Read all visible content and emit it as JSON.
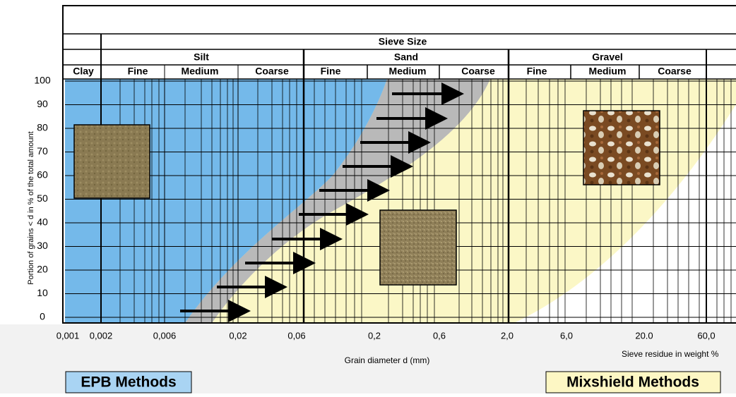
{
  "header": {
    "title": "Sieve Size",
    "groups": [
      "Silt",
      "Sand",
      "Gravel"
    ],
    "classes": [
      "Clay",
      "Fine",
      "Medium",
      "Coarse",
      "Fine",
      "Medium",
      "Coarse",
      "Fine",
      "Medium",
      "Coarse"
    ]
  },
  "y_axis": {
    "label": "Portion of grains < d in % of the total amount",
    "ticks": [
      "100",
      "90",
      "80",
      "70",
      "60",
      "50",
      "40",
      "30",
      "20",
      "10",
      "0"
    ]
  },
  "x_axis": {
    "label": "Grain diameter d (mm)",
    "ticks": [
      "0,001",
      "0,002",
      "0,006",
      "0,02",
      "0,06",
      "0,2",
      "0,6",
      "2,0",
      "6,0",
      "20.0",
      "60,0"
    ]
  },
  "secondary_label": "Sieve residue in weight %",
  "methods": [
    "EPB Methods",
    "Mixshield Methods"
  ]
}
